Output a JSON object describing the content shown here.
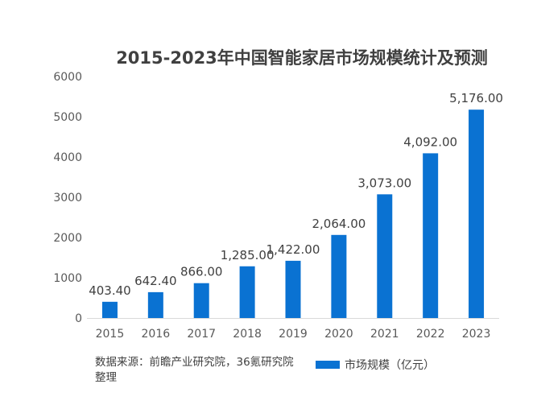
{
  "chart_data": {
    "type": "bar",
    "title": "2015-2023年中国智能家居市场规模统计及预测",
    "categories": [
      "2015",
      "2016",
      "2017",
      "2018",
      "2019",
      "2020",
      "2021",
      "2022",
      "2023"
    ],
    "series": [
      {
        "name": "市场规模（亿元）",
        "values": [
          403.4,
          642.4,
          866.0,
          1285.0,
          1422.0,
          2064.0,
          3073.0,
          4092.0,
          5176.0
        ],
        "labels": [
          "403.40",
          "642.40",
          "866.00",
          "1,285.00",
          "1,422.00",
          "2,064.00",
          "3,073.00",
          "4,092.00",
          "5,176.00"
        ],
        "color": "#0A72D2"
      }
    ],
    "ylim": [
      0,
      6000
    ],
    "yticks": [
      0,
      1000,
      2000,
      3000,
      4000,
      5000,
      6000
    ],
    "grid": false,
    "legend": "bottom-right"
  },
  "source_note": "数据来源：前瞻产业研究院，36氪研究院整理"
}
